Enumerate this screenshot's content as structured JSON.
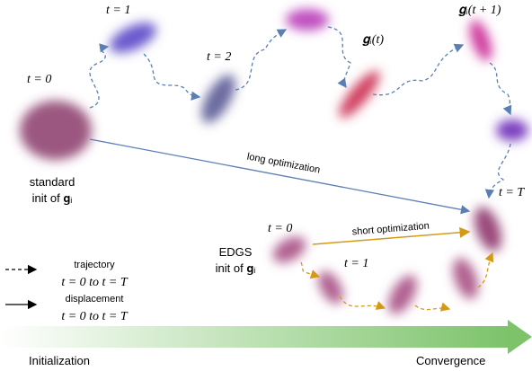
{
  "diagram": {
    "standard": {
      "t0": "t = 0",
      "t1": "t = 1",
      "t2": "t = 2",
      "gt": "𝐠ᵢ(t)",
      "gt1": "𝐠ᵢ(t + 1)",
      "tT": "t = T",
      "label_line1": "standard",
      "label_line2": "init of 𝐠ᵢ",
      "arrow_label": "long optimization"
    },
    "edgs": {
      "t0": "t = 0",
      "t1": "t = 1",
      "label_line1": "EDGS",
      "label_line2": "init of 𝐠ᵢ",
      "arrow_label": "short optimization"
    },
    "legend": {
      "trajectory": "trajectory",
      "trajectory_range": "t = 0 to t = T",
      "displacement": "displacement",
      "displacement_range": "t = 0 to t = T"
    },
    "axis": {
      "start": "Initialization",
      "end": "Convergence"
    }
  }
}
